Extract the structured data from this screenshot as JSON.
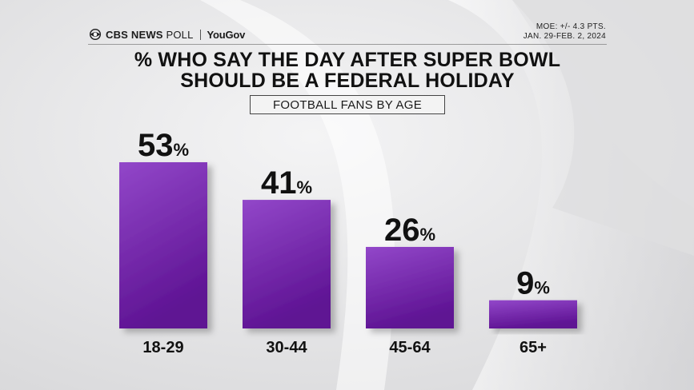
{
  "header": {
    "brand_cbs": "CBS NEWS",
    "brand_poll": "POLL",
    "brand_partner": "YouGov",
    "moe": "MOE: +/- 4.3 PTS.",
    "dates": "JAN. 29-FEB. 2, 2024"
  },
  "chart_data": {
    "type": "bar",
    "title": "% WHO SAY THE DAY AFTER SUPER BOWL SHOULD BE A FEDERAL HOLIDAY",
    "title_lines": [
      "% WHO SAY THE DAY AFTER SUPER BOWL",
      "SHOULD BE A FEDERAL HOLIDAY"
    ],
    "subtitle": "FOOTBALL FANS BY AGE",
    "categories": [
      "18-29",
      "30-44",
      "45-64",
      "65+"
    ],
    "values": [
      53,
      41,
      26,
      9
    ],
    "value_unit": "%",
    "ylim": [
      0,
      53
    ],
    "grid": false,
    "legend": "none",
    "bar_color": "#7a2db3"
  }
}
